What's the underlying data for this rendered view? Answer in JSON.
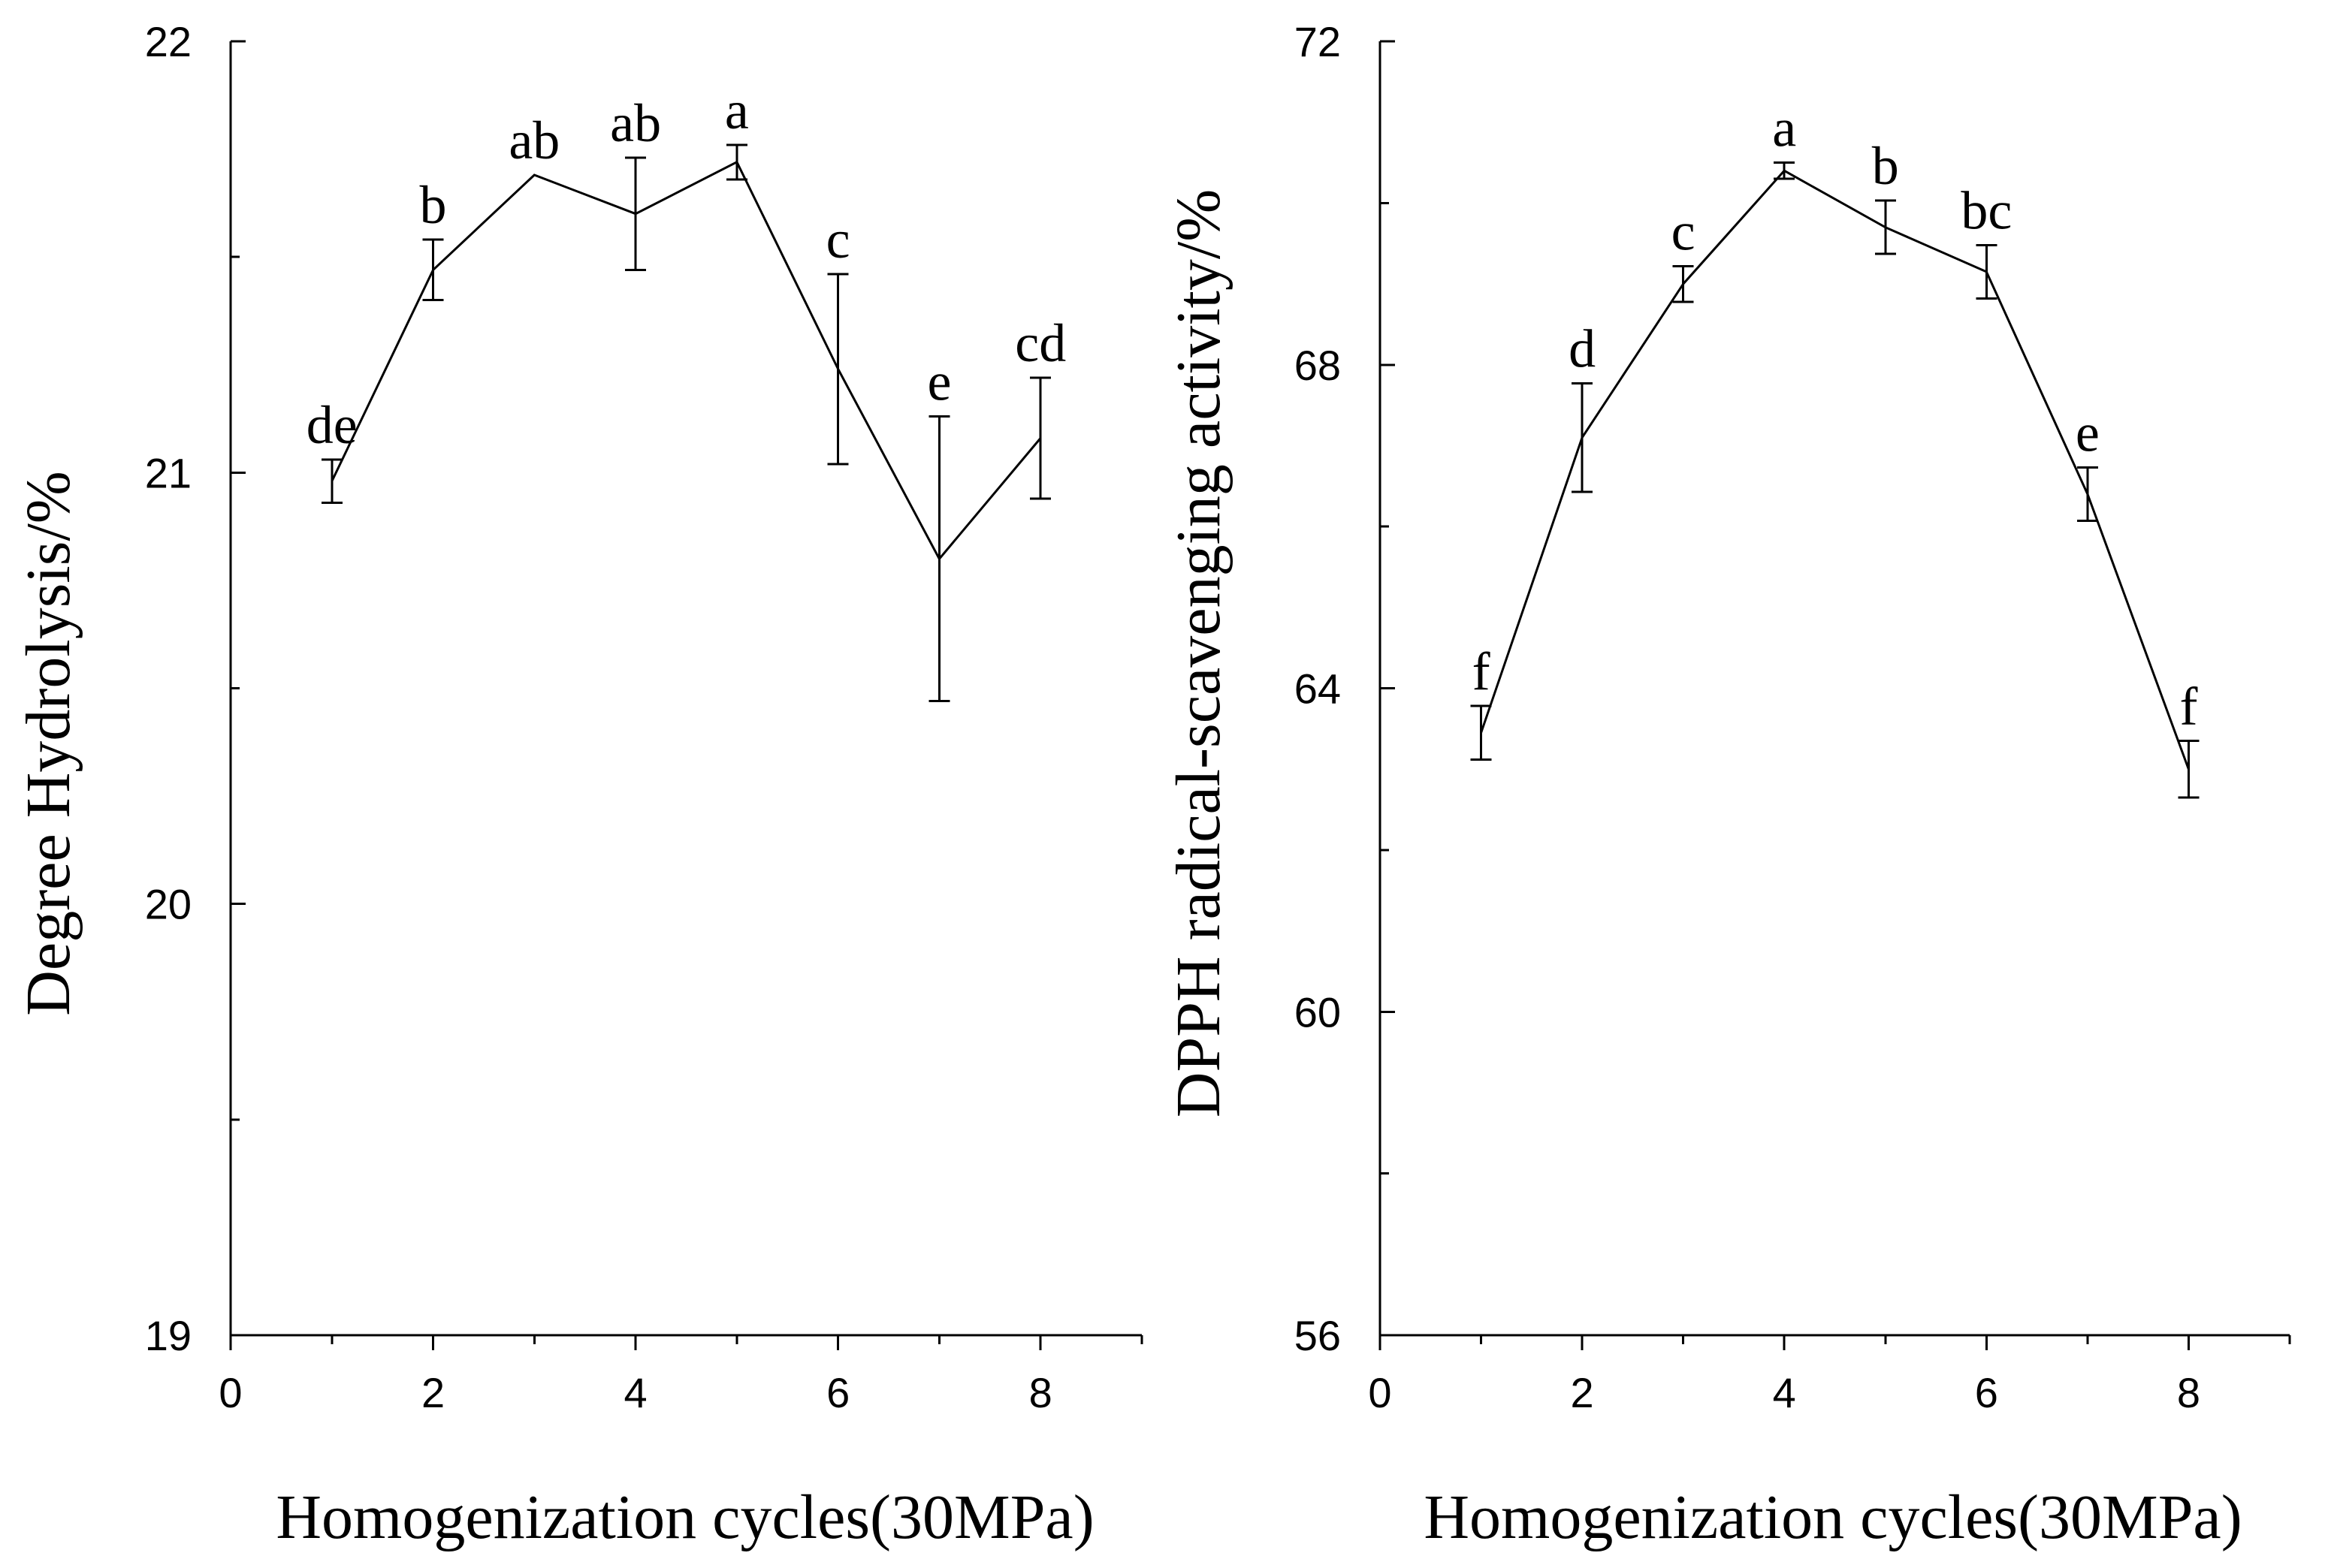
{
  "chart_data": [
    {
      "type": "line",
      "title": "",
      "xlabel": "Homogenization cycles(30MPa)",
      "ylabel": "Degree Hydrolysis/%",
      "xlim": [
        0,
        9
      ],
      "ylim": [
        19,
        22
      ],
      "xticks": [
        0,
        2,
        4,
        6,
        8
      ],
      "xtick_labels": [
        "0",
        "2",
        "4",
        "6",
        "8"
      ],
      "yticks": [
        19,
        20,
        21,
        22
      ],
      "ytick_labels": [
        "19",
        "20",
        "21",
        "22"
      ],
      "yminor": [
        19.5,
        20.5,
        21.5
      ],
      "grid": false,
      "series": [
        {
          "name": "Degree Hydrolysis",
          "x": [
            1,
            2,
            3,
            4,
            5,
            6,
            7,
            8
          ],
          "values": [
            20.98,
            21.47,
            21.69,
            21.6,
            21.72,
            21.24,
            20.8,
            21.08
          ],
          "error": [
            0.05,
            0.07,
            0,
            0.13,
            0.04,
            0.22,
            0.33,
            0.14
          ],
          "labels": [
            "de",
            "b",
            "ab",
            "ab",
            "a",
            "c",
            "e",
            "cd"
          ]
        }
      ]
    },
    {
      "type": "line",
      "title": "",
      "xlabel": "Homogenization cycles(30MPa)",
      "ylabel": "DPPH radical-scavenging activity/%",
      "xlim": [
        0,
        9
      ],
      "ylim": [
        56,
        72
      ],
      "xticks": [
        0,
        2,
        4,
        6,
        8
      ],
      "xtick_labels": [
        "0",
        "2",
        "4",
        "6",
        "8"
      ],
      "yticks": [
        56,
        60,
        64,
        68,
        72
      ],
      "ytick_labels": [
        "56",
        "60",
        "64",
        "68",
        "72"
      ],
      "yminor": [
        58,
        62,
        66,
        70
      ],
      "grid": false,
      "series": [
        {
          "name": "DPPH radical-scavenging activity",
          "x": [
            1,
            2,
            3,
            4,
            5,
            6,
            7,
            8
          ],
          "values": [
            63.45,
            67.1,
            69.0,
            70.4,
            69.7,
            69.15,
            66.4,
            63.0
          ],
          "error": [
            0.33,
            0.67,
            0.22,
            0.1,
            0.33,
            0.33,
            0.33,
            0.35
          ],
          "labels": [
            "f",
            "d",
            "c",
            "a",
            "b",
            "bc",
            "e",
            "f"
          ]
        }
      ]
    }
  ]
}
